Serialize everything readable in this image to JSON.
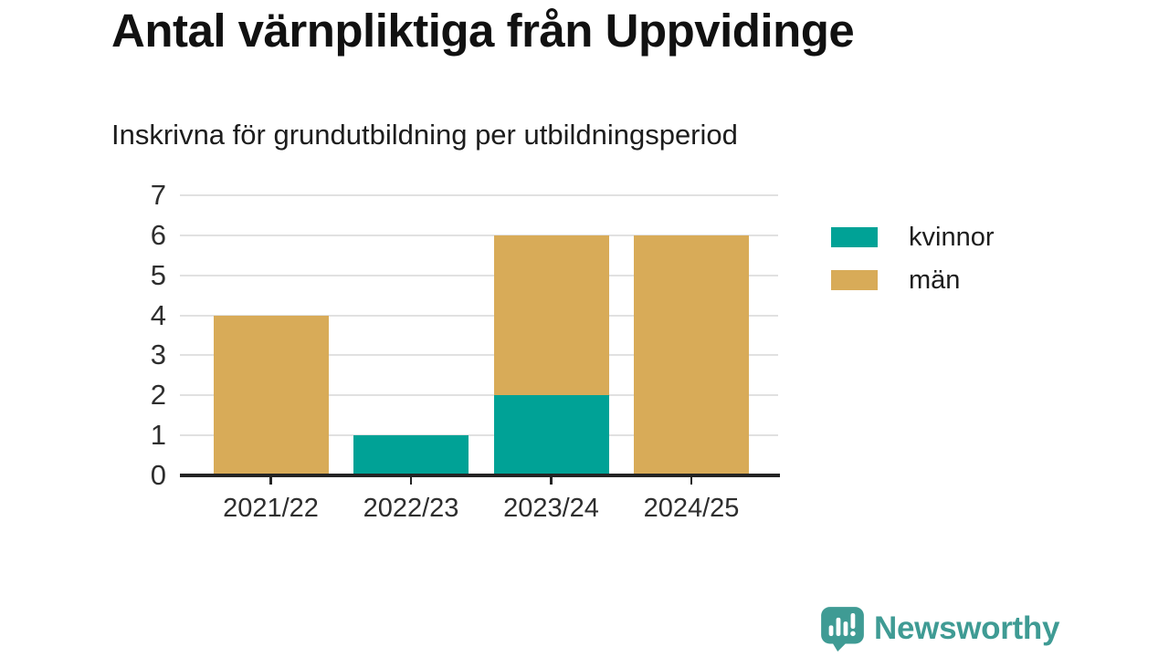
{
  "title": "Antal värnpliktiga från Uppvidinge",
  "subtitle": "Inskrivna för grundutbildning per utbildningsperiod",
  "colors": {
    "kvinnor": "#00a296",
    "man": "#d8ab58",
    "grid": "#e1e1e1",
    "axis": "#242424",
    "tick_text": "#2e2e2e",
    "brand": "#3f9b94"
  },
  "chart_data": {
    "type": "bar",
    "stacked": true,
    "title": "Antal värnpliktiga från Uppvidinge",
    "subtitle": "Inskrivna för grundutbildning per utbildningsperiod",
    "categories": [
      "2021/22",
      "2022/23",
      "2023/24",
      "2024/25"
    ],
    "series": [
      {
        "name": "kvinnor",
        "color": "#00a296",
        "values": [
          0,
          1,
          2,
          0
        ]
      },
      {
        "name": "män",
        "color": "#d8ab58",
        "values": [
          4,
          0,
          4,
          6
        ]
      }
    ],
    "totals": [
      4,
      1,
      6,
      6
    ],
    "xlabel": "",
    "ylabel": "",
    "ylim": [
      0,
      7
    ],
    "yticks": [
      0,
      1,
      2,
      3,
      4,
      5,
      6,
      7
    ],
    "grid": true,
    "legend_position": "right"
  },
  "legend": {
    "items": [
      {
        "label": "kvinnor",
        "color": "#00a296"
      },
      {
        "label": "män",
        "color": "#d8ab58"
      }
    ]
  },
  "footer": {
    "brand": "Newsworthy"
  },
  "icons": {
    "brand_icon": "bar-chart-speech-bubble-icon"
  }
}
